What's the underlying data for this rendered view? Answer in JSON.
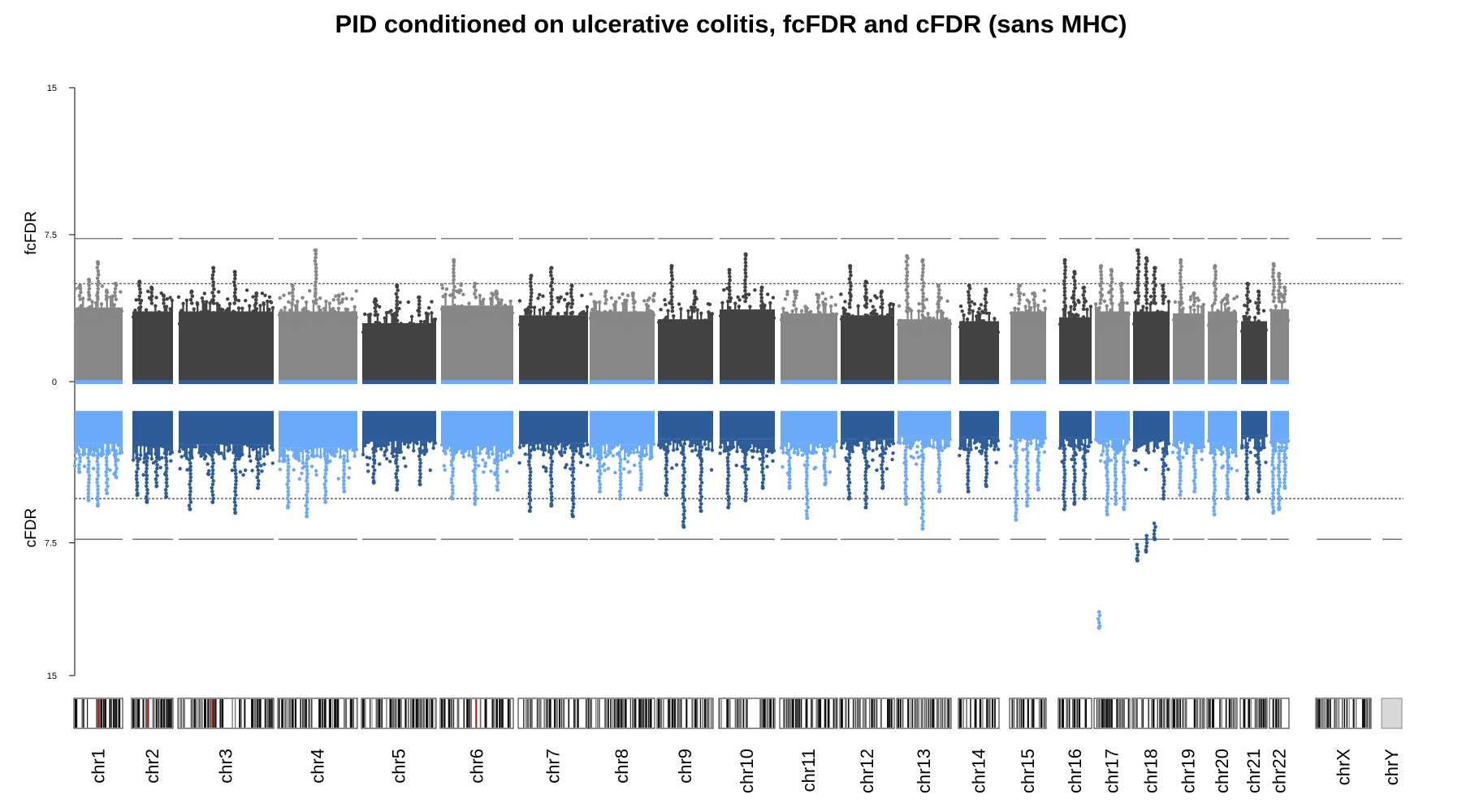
{
  "chart_data": {
    "type": "scatter",
    "title": "PID conditioned on ulcerative colitis, fcFDR and cFDR (sans MHC)",
    "upper_panel": {
      "ylabel": "fcFDR",
      "yticks": [
        "15",
        "7.5",
        "0"
      ],
      "ylim": [
        0,
        15
      ],
      "solid_threshold": 7.3,
      "dotted_threshold": 5,
      "colors": {
        "light": "#878787",
        "dark": "#424242"
      }
    },
    "lower_panel": {
      "ylabel": "cFDR",
      "yticks": [
        "0",
        "7.5",
        "15"
      ],
      "ylim": [
        0,
        15
      ],
      "solid_threshold": 7.3,
      "dotted_threshold": 5,
      "colors": {
        "light": "#6aaaf8",
        "dark": "#2d5c99"
      }
    },
    "chromosomes": [
      {
        "name": "chr1",
        "shade": "light",
        "up_body": 4.2,
        "up_peaks": [
          4.9,
          5.2,
          6.1,
          4.6,
          5.0
        ],
        "down_body": 2.3,
        "down_peaks": [
          3.5,
          5.1,
          5.4,
          4.7,
          3.8
        ]
      },
      {
        "name": "chr2",
        "shade": "dark",
        "up_body": 4.0,
        "up_peaks": [
          5.1,
          4.8,
          4.4
        ],
        "down_body": 2.5,
        "down_peaks": [
          4.8,
          5.2,
          4.3,
          4.9
        ]
      },
      {
        "name": "chr3",
        "shade": "dark",
        "up_body": 4.0,
        "up_peaks": [
          4.6,
          5.8,
          5.6,
          4.5
        ],
        "down_body": 2.4,
        "down_peaks": [
          5.6,
          5.2,
          5.8,
          4.4
        ]
      },
      {
        "name": "chr4",
        "shade": "light",
        "up_body": 4.0,
        "up_peaks": [
          4.9,
          6.7,
          4.4
        ],
        "down_body": 2.6,
        "down_peaks": [
          5.5,
          6.0,
          5.2,
          4.6
        ]
      },
      {
        "name": "chr5",
        "shade": "dark",
        "up_body": 3.4,
        "up_peaks": [
          4.2,
          4.9,
          4.3
        ],
        "down_body": 2.2,
        "down_peaks": [
          4.1,
          4.5,
          4.2
        ]
      },
      {
        "name": "chr6",
        "shade": "light",
        "up_body": 4.3,
        "up_peaks": [
          6.2,
          5.0,
          4.6
        ],
        "down_body": 2.5,
        "down_peaks": [
          5.0,
          5.3,
          4.5
        ]
      },
      {
        "name": "chr7",
        "shade": "dark",
        "up_body": 3.8,
        "up_peaks": [
          5.4,
          5.8,
          4.9
        ],
        "down_body": 2.3,
        "down_peaks": [
          5.7,
          5.4,
          6.0
        ]
      },
      {
        "name": "chr8",
        "shade": "light",
        "up_body": 4.0,
        "up_peaks": [
          4.6,
          4.5
        ],
        "down_body": 2.4,
        "down_peaks": [
          4.6,
          5.0,
          4.5
        ]
      },
      {
        "name": "chr9",
        "shade": "dark",
        "up_body": 3.6,
        "up_peaks": [
          5.9,
          4.6
        ],
        "down_body": 2.1,
        "down_peaks": [
          4.8,
          6.6,
          5.7
        ]
      },
      {
        "name": "chr10",
        "shade": "dark",
        "up_body": 4.1,
        "up_peaks": [
          5.7,
          6.5,
          4.8
        ],
        "down_body": 2.1,
        "down_peaks": [
          5.5,
          5.1,
          4.4
        ]
      },
      {
        "name": "chr11",
        "shade": "light",
        "up_body": 3.9,
        "up_peaks": [
          4.6,
          4.4
        ],
        "down_body": 2.3,
        "down_peaks": [
          4.4,
          6.1,
          4.2
        ]
      },
      {
        "name": "chr12",
        "shade": "dark",
        "up_body": 3.8,
        "up_peaks": [
          5.9,
          5.1,
          4.6
        ],
        "down_body": 2.1,
        "down_peaks": [
          5.0,
          5.5,
          4.4
        ]
      },
      {
        "name": "chr13",
        "shade": "light",
        "up_body": 3.6,
        "up_peaks": [
          6.4,
          6.2,
          4.9
        ],
        "down_body": 1.9,
        "down_peaks": [
          5.3,
          6.7,
          4.6
        ]
      },
      {
        "name": "chr14",
        "shade": "dark",
        "up_body": 3.5,
        "up_peaks": [
          4.9,
          4.7
        ],
        "down_body": 2.0,
        "down_peaks": [
          4.6,
          4.3
        ]
      },
      {
        "name": "chr15",
        "shade": "light",
        "up_body": 4.0,
        "up_peaks": [
          4.9,
          4.5
        ],
        "down_body": 2.0,
        "down_peaks": [
          6.2,
          5.4,
          4.5
        ]
      },
      {
        "name": "chr16",
        "shade": "dark",
        "up_body": 3.7,
        "up_peaks": [
          6.2,
          5.6,
          4.8
        ],
        "down_body": 2.0,
        "down_peaks": [
          5.6,
          5.3,
          5.0
        ]
      },
      {
        "name": "chr17",
        "shade": "light",
        "up_body": 4.0,
        "up_peaks": [
          5.9,
          5.7,
          5.0
        ],
        "down_body": 2.1,
        "down_peaks": [
          12.3,
          5.9,
          5.3,
          5.6
        ]
      },
      {
        "name": "chr18",
        "shade": "dark",
        "up_body": 4.0,
        "up_peaks": [
          6.7,
          6.3,
          5.8,
          4.9
        ],
        "down_body": 2.2,
        "down_peaks": [
          8.5,
          8.0,
          7.3,
          5.0
        ]
      },
      {
        "name": "chr19",
        "shade": "light",
        "up_body": 3.9,
        "up_peaks": [
          6.2,
          4.5
        ],
        "down_body": 2.2,
        "down_peaks": [
          4.8,
          4.6
        ]
      },
      {
        "name": "chr20",
        "shade": "light",
        "up_body": 4.0,
        "up_peaks": [
          5.9,
          4.4
        ],
        "down_body": 2.3,
        "down_peaks": [
          5.9,
          5.0
        ]
      },
      {
        "name": "chr21",
        "shade": "dark",
        "up_body": 3.5,
        "up_peaks": [
          5.0,
          4.6
        ],
        "down_body": 1.9,
        "down_peaks": [
          5.0,
          4.6
        ]
      },
      {
        "name": "chr22",
        "shade": "light",
        "up_body": 4.1,
        "up_peaks": [
          6.0,
          5.5,
          4.8
        ],
        "down_body": 2.1,
        "down_peaks": [
          5.8,
          5.6,
          4.4
        ]
      },
      {
        "name": "chrX",
        "shade": "none",
        "up_body": 0,
        "up_peaks": [],
        "down_body": 0,
        "down_peaks": []
      },
      {
        "name": "chrY",
        "shade": "none",
        "up_body": 0,
        "up_peaks": [],
        "down_body": 0,
        "down_peaks": []
      }
    ]
  }
}
